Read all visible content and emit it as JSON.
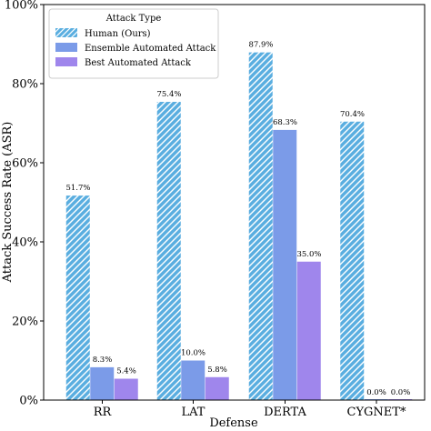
{
  "chart_data": {
    "type": "bar",
    "xlabel": "Defense",
    "ylabel": "Attack Success Rate (ASR)",
    "ylim": [
      0,
      100
    ],
    "yticks": [
      "0%",
      "20%",
      "40%",
      "60%",
      "80%",
      "100%"
    ],
    "ytick_values": [
      0,
      20,
      40,
      60,
      80,
      100
    ],
    "categories": [
      "RR",
      "LAT",
      "DERTA",
      "CYGNET*"
    ],
    "legend": {
      "title": "Attack Type",
      "placement": "top-left"
    },
    "series": [
      {
        "name": "Human (Ours)",
        "color": "#5aaee0",
        "pattern": "hatched",
        "values": [
          51.7,
          75.4,
          87.9,
          70.4
        ],
        "labels": [
          "51.7%",
          "75.4%",
          "87.9%",
          "70.4%"
        ]
      },
      {
        "name": "Ensemble Automated Attack",
        "color": "#7b9be8",
        "pattern": "solid",
        "values": [
          8.3,
          10.0,
          68.3,
          0.0
        ],
        "labels": [
          "8.3%",
          "10.0%",
          "68.3%",
          "0.0%"
        ]
      },
      {
        "name": "Best Automated Attack",
        "color": "#9f86ec",
        "pattern": "solid",
        "values": [
          5.4,
          5.8,
          35.0,
          0.0
        ],
        "labels": [
          "5.4%",
          "5.8%",
          "35.0%",
          "0.0%"
        ]
      }
    ],
    "grid": false
  }
}
